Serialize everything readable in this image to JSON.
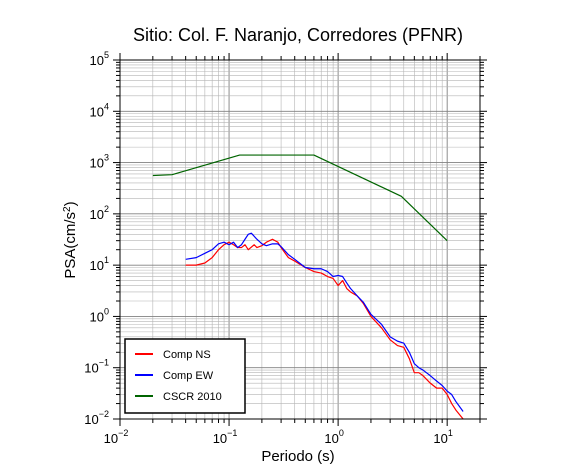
{
  "chart_data": {
    "type": "line",
    "title": "Sitio: Col. F. Naranjo, Corredores (PFNR)",
    "xlabel": "Periodo (s)",
    "ylabel_base": "PSA(cm/s",
    "ylabel_sup": "2",
    "ylabel_close": ")",
    "x_scale": "log",
    "y_scale": "log",
    "xlim": [
      0.01,
      20
    ],
    "ylim": [
      0.01,
      100000
    ],
    "grid": true,
    "legend_placement": "bottom-left",
    "x_ticks": [
      {
        "base": "10",
        "exp": "−2",
        "value": 0.01
      },
      {
        "base": "10",
        "exp": "−1",
        "value": 0.1
      },
      {
        "base": "10",
        "exp": "0",
        "value": 1
      },
      {
        "base": "10",
        "exp": "1",
        "value": 10
      }
    ],
    "y_ticks": [
      {
        "base": "10",
        "exp": "−2",
        "value": 0.01
      },
      {
        "base": "10",
        "exp": "−1",
        "value": 0.1
      },
      {
        "base": "10",
        "exp": "0",
        "value": 1
      },
      {
        "base": "10",
        "exp": "1",
        "value": 10
      },
      {
        "base": "10",
        "exp": "2",
        "value": 100
      },
      {
        "base": "10",
        "exp": "3",
        "value": 1000
      },
      {
        "base": "10",
        "exp": "4",
        "value": 10000
      },
      {
        "base": "10",
        "exp": "5",
        "value": 100000
      }
    ],
    "series": [
      {
        "name": "Comp NS",
        "color": "#ff0000",
        "points": [
          [
            0.04,
            10
          ],
          [
            0.05,
            10
          ],
          [
            0.06,
            11
          ],
          [
            0.07,
            14
          ],
          [
            0.08,
            20
          ],
          [
            0.09,
            25
          ],
          [
            0.1,
            28
          ],
          [
            0.11,
            25
          ],
          [
            0.12,
            22
          ],
          [
            0.13,
            22
          ],
          [
            0.14,
            25
          ],
          [
            0.15,
            20
          ],
          [
            0.17,
            25
          ],
          [
            0.18,
            22
          ],
          [
            0.2,
            24
          ],
          [
            0.22,
            28
          ],
          [
            0.25,
            32
          ],
          [
            0.28,
            28
          ],
          [
            0.3,
            22
          ],
          [
            0.35,
            14
          ],
          [
            0.4,
            12
          ],
          [
            0.5,
            9
          ],
          [
            0.6,
            7.5
          ],
          [
            0.7,
            7
          ],
          [
            0.8,
            6
          ],
          [
            0.9,
            5.5
          ],
          [
            1,
            4
          ],
          [
            1.1,
            5
          ],
          [
            1.2,
            3.5
          ],
          [
            1.3,
            3
          ],
          [
            1.5,
            2.5
          ],
          [
            1.7,
            1.8
          ],
          [
            2,
            1
          ],
          [
            2.5,
            0.6
          ],
          [
            3,
            0.35
          ],
          [
            3.5,
            0.27
          ],
          [
            4,
            0.25
          ],
          [
            4.5,
            0.15
          ],
          [
            5,
            0.08
          ],
          [
            5.5,
            0.08
          ],
          [
            6,
            0.07
          ],
          [
            7,
            0.05
          ],
          [
            8,
            0.04
          ],
          [
            9,
            0.04
          ],
          [
            10,
            0.03
          ],
          [
            11,
            0.02
          ],
          [
            12,
            0.015
          ],
          [
            14,
            0.01
          ]
        ]
      },
      {
        "name": "Comp EW",
        "color": "#0000ff",
        "points": [
          [
            0.04,
            13
          ],
          [
            0.05,
            14
          ],
          [
            0.06,
            17
          ],
          [
            0.07,
            20
          ],
          [
            0.08,
            26
          ],
          [
            0.09,
            28
          ],
          [
            0.1,
            25
          ],
          [
            0.11,
            28
          ],
          [
            0.12,
            22
          ],
          [
            0.13,
            25
          ],
          [
            0.14,
            32
          ],
          [
            0.15,
            40
          ],
          [
            0.16,
            42
          ],
          [
            0.18,
            32
          ],
          [
            0.2,
            26
          ],
          [
            0.22,
            24
          ],
          [
            0.25,
            26
          ],
          [
            0.28,
            26
          ],
          [
            0.3,
            23
          ],
          [
            0.35,
            16
          ],
          [
            0.4,
            13
          ],
          [
            0.5,
            9
          ],
          [
            0.6,
            8.5
          ],
          [
            0.7,
            8.5
          ],
          [
            0.8,
            7.5
          ],
          [
            0.9,
            6
          ],
          [
            1,
            6.3
          ],
          [
            1.1,
            6
          ],
          [
            1.2,
            4.5
          ],
          [
            1.3,
            3.5
          ],
          [
            1.5,
            2.5
          ],
          [
            1.7,
            1.9
          ],
          [
            2,
            1.1
          ],
          [
            2.5,
            0.7
          ],
          [
            3,
            0.4
          ],
          [
            3.5,
            0.33
          ],
          [
            4,
            0.3
          ],
          [
            4.5,
            0.2
          ],
          [
            5,
            0.12
          ],
          [
            5.5,
            0.1
          ],
          [
            6,
            0.09
          ],
          [
            7,
            0.07
          ],
          [
            8,
            0.055
          ],
          [
            9,
            0.045
          ],
          [
            10,
            0.035
          ],
          [
            11,
            0.03
          ],
          [
            12,
            0.022
          ],
          [
            14,
            0.014
          ]
        ]
      },
      {
        "name": "CSCR 2010",
        "color": "#006400",
        "points": [
          [
            0.02,
            560
          ],
          [
            0.03,
            580
          ],
          [
            0.125,
            1400
          ],
          [
            0.6,
            1400
          ],
          [
            3.8,
            220
          ],
          [
            10,
            30
          ]
        ]
      }
    ]
  }
}
